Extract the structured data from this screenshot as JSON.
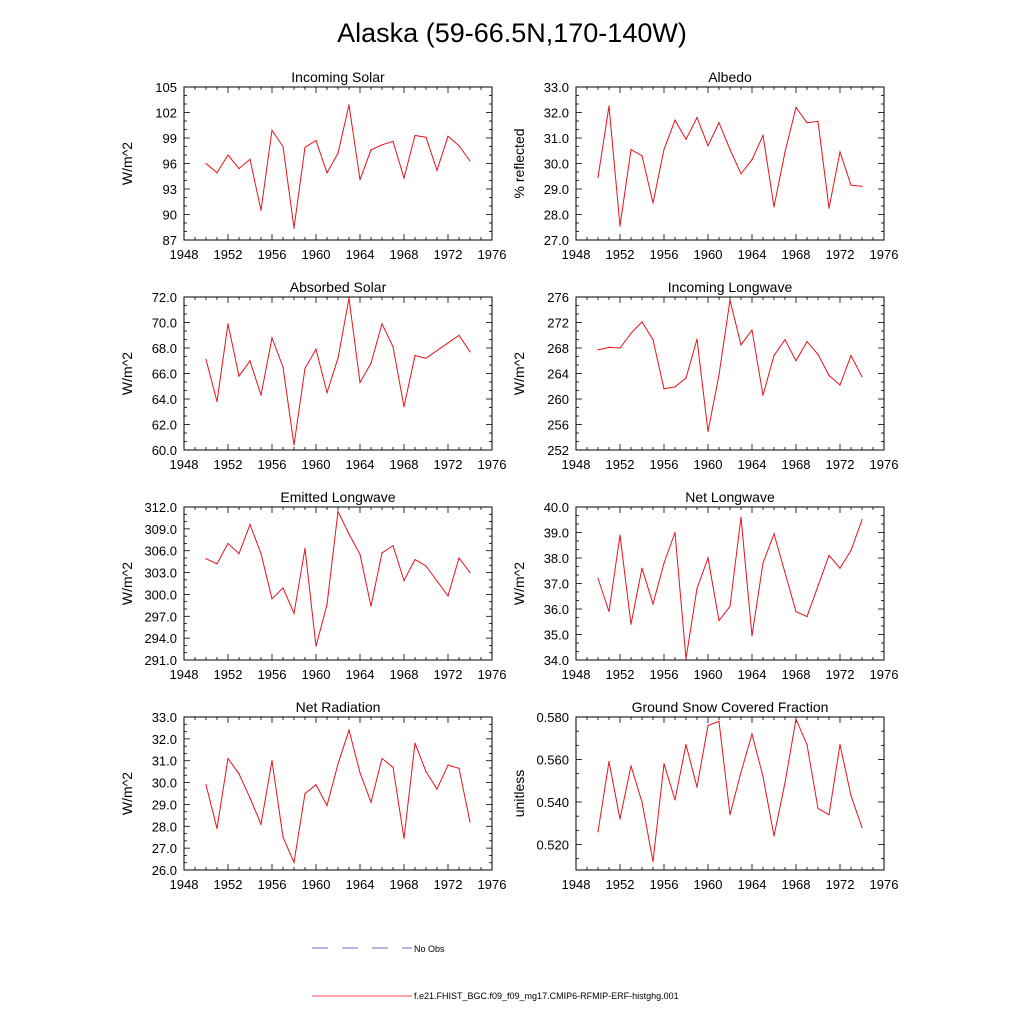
{
  "figure": {
    "title": "Alaska (59-66.5N,170-140W)",
    "legend": [
      {
        "label": "No Obs",
        "color": "#3b3bb5",
        "style": "dashed"
      },
      {
        "label": "f.e21.FHIST_BGC.f09_f09_mg17.CMIP6-RFMIP-ERF-histghg.001",
        "color": "#e8121a",
        "style": "solid"
      }
    ]
  },
  "chart_data": [
    {
      "type": "line",
      "title": "Incoming Solar",
      "xlabel": "",
      "ylabel": "W/m^2",
      "xlim": [
        1948,
        1976
      ],
      "ylim": [
        87,
        105
      ],
      "xticks": [
        1948,
        1952,
        1956,
        1960,
        1964,
        1968,
        1972,
        1976
      ],
      "yticks": [
        87,
        90,
        93,
        96,
        99,
        102,
        105
      ],
      "ytick_decimals": 0,
      "series": [
        {
          "color": "#e8121a",
          "x": [
            1950,
            1951,
            1952,
            1953,
            1954,
            1955,
            1956,
            1957,
            1958,
            1959,
            1960,
            1961,
            1962,
            1963,
            1964,
            1965,
            1966,
            1967,
            1968,
            1969,
            1970,
            1971,
            1972,
            1973,
            1974
          ],
          "y": [
            96.0,
            94.9,
            97.0,
            95.4,
            96.5,
            90.5,
            99.9,
            98.0,
            88.4,
            97.9,
            98.7,
            94.9,
            97.2,
            102.9,
            94.1,
            97.6,
            98.2,
            98.6,
            94.3,
            99.3,
            99.1,
            95.2,
            99.2,
            98.1,
            96.3
          ]
        }
      ]
    },
    {
      "type": "line",
      "title": "Albedo",
      "xlabel": "",
      "ylabel": "% reflected",
      "xlim": [
        1948,
        1976
      ],
      "ylim": [
        27.0,
        33.0
      ],
      "xticks": [
        1948,
        1952,
        1956,
        1960,
        1964,
        1968,
        1972,
        1976
      ],
      "yticks": [
        27,
        28,
        29,
        30,
        31,
        32,
        33
      ],
      "ytick_decimals": 1,
      "series": [
        {
          "color": "#e8121a",
          "x": [
            1950,
            1951,
            1952,
            1953,
            1954,
            1955,
            1956,
            1957,
            1958,
            1959,
            1960,
            1961,
            1962,
            1963,
            1964,
            1965,
            1966,
            1967,
            1968,
            1969,
            1970,
            1971,
            1972,
            1973,
            1974
          ],
          "y": [
            29.45,
            32.25,
            27.55,
            30.55,
            30.3,
            28.45,
            30.55,
            31.7,
            30.95,
            31.8,
            30.7,
            31.6,
            30.55,
            29.6,
            30.15,
            31.1,
            28.3,
            30.45,
            32.2,
            31.6,
            31.65,
            28.25,
            30.45,
            29.15,
            29.1
          ]
        }
      ]
    },
    {
      "type": "line",
      "title": "Absorbed Solar",
      "xlabel": "",
      "ylabel": "W/m^2",
      "xlim": [
        1948,
        1976
      ],
      "ylim": [
        60.0,
        72.0
      ],
      "xticks": [
        1948,
        1952,
        1956,
        1960,
        1964,
        1968,
        1972,
        1976
      ],
      "yticks": [
        60,
        62,
        64,
        66,
        68,
        70,
        72
      ],
      "ytick_decimals": 1,
      "series": [
        {
          "color": "#e8121a",
          "x": [
            1950,
            1951,
            1952,
            1953,
            1954,
            1955,
            1956,
            1957,
            1958,
            1959,
            1960,
            1961,
            1962,
            1963,
            1964,
            1965,
            1966,
            1967,
            1968,
            1969,
            1970,
            1973,
            1974
          ],
          "y": [
            67.1,
            63.8,
            69.9,
            65.8,
            67.0,
            64.3,
            68.8,
            66.5,
            60.4,
            66.4,
            67.9,
            64.5,
            67.2,
            71.9,
            65.3,
            66.8,
            69.9,
            68.1,
            63.4,
            67.4,
            67.2,
            69.0,
            67.7
          ]
        }
      ]
    },
    {
      "type": "line",
      "title": "Incoming Longwave",
      "xlabel": "",
      "ylabel": "W/m^2",
      "xlim": [
        1948,
        1976
      ],
      "ylim": [
        252,
        276
      ],
      "xticks": [
        1948,
        1952,
        1956,
        1960,
        1964,
        1968,
        1972,
        1976
      ],
      "yticks": [
        252,
        256,
        260,
        264,
        268,
        272,
        276
      ],
      "ytick_decimals": 0,
      "series": [
        {
          "color": "#e8121a",
          "x": [
            1950,
            1951,
            1952,
            1953,
            1954,
            1955,
            1956,
            1957,
            1958,
            1959,
            1960,
            1961,
            1962,
            1963,
            1964,
            1965,
            1966,
            1967,
            1968,
            1969,
            1970,
            1971,
            1972,
            1973,
            1974
          ],
          "y": [
            267.7,
            268.1,
            268.0,
            270.3,
            272.1,
            269.3,
            261.6,
            261.9,
            263.3,
            269.4,
            254.9,
            263.8,
            275.5,
            268.5,
            270.8,
            260.6,
            266.8,
            269.3,
            266.0,
            269.0,
            267.0,
            263.7,
            262.2,
            266.8,
            263.5
          ]
        }
      ]
    },
    {
      "type": "line",
      "title": "Emitted Longwave",
      "xlabel": "",
      "ylabel": "W/m^2",
      "xlim": [
        1948,
        1976
      ],
      "ylim": [
        291.0,
        312.0
      ],
      "xticks": [
        1948,
        1952,
        1956,
        1960,
        1964,
        1968,
        1972,
        1976
      ],
      "yticks": [
        291,
        294,
        297,
        300,
        303,
        306,
        309,
        312
      ],
      "ytick_decimals": 1,
      "series": [
        {
          "color": "#e8121a",
          "x": [
            1950,
            1951,
            1952,
            1953,
            1954,
            1955,
            1956,
            1957,
            1958,
            1959,
            1960,
            1961,
            1962,
            1963,
            1964,
            1965,
            1966,
            1967,
            1968,
            1969,
            1970,
            1972,
            1973,
            1974
          ],
          "y": [
            304.9,
            304.2,
            307.0,
            305.6,
            309.6,
            305.6,
            299.4,
            300.9,
            297.4,
            306.3,
            292.9,
            298.6,
            311.4,
            308.3,
            305.5,
            298.4,
            305.7,
            306.7,
            301.9,
            304.8,
            303.9,
            299.8,
            305.0,
            303.0
          ]
        }
      ]
    },
    {
      "type": "line",
      "title": "Net Longwave",
      "xlabel": "",
      "ylabel": "W/m^2",
      "xlim": [
        1948,
        1976
      ],
      "ylim": [
        34.0,
        40.0
      ],
      "xticks": [
        1948,
        1952,
        1956,
        1960,
        1964,
        1968,
        1972,
        1976
      ],
      "yticks": [
        34,
        35,
        36,
        37,
        38,
        39,
        40
      ],
      "ytick_decimals": 1,
      "series": [
        {
          "color": "#e8121a",
          "x": [
            1950,
            1951,
            1952,
            1953,
            1954,
            1955,
            1956,
            1957,
            1958,
            1959,
            1960,
            1961,
            1962,
            1963,
            1964,
            1965,
            1966,
            1968,
            1969,
            1971,
            1972,
            1973,
            1974
          ],
          "y": [
            37.2,
            35.9,
            38.9,
            35.4,
            37.6,
            36.2,
            37.8,
            39.0,
            34.05,
            36.8,
            38.0,
            35.55,
            36.1,
            39.6,
            34.95,
            37.8,
            38.95,
            35.9,
            35.7,
            38.1,
            37.6,
            38.3,
            39.5
          ]
        }
      ]
    },
    {
      "type": "line",
      "title": "Net Radiation",
      "xlabel": "",
      "ylabel": "W/m^2",
      "xlim": [
        1948,
        1976
      ],
      "ylim": [
        26.0,
        33.0
      ],
      "xticks": [
        1948,
        1952,
        1956,
        1960,
        1964,
        1968,
        1972,
        1976
      ],
      "yticks": [
        26,
        27,
        28,
        29,
        30,
        31,
        32,
        33
      ],
      "ytick_decimals": 1,
      "series": [
        {
          "color": "#e8121a",
          "x": [
            1950,
            1951,
            1952,
            1953,
            1954,
            1955,
            1956,
            1957,
            1958,
            1959,
            1960,
            1961,
            1962,
            1963,
            1964,
            1965,
            1966,
            1967,
            1968,
            1969,
            1970,
            1971,
            1972,
            1973,
            1974
          ],
          "y": [
            29.9,
            27.9,
            31.1,
            30.4,
            29.3,
            28.1,
            31.0,
            27.5,
            26.35,
            29.5,
            29.9,
            28.95,
            30.85,
            32.4,
            30.45,
            29.1,
            31.1,
            30.7,
            27.45,
            31.8,
            30.5,
            29.7,
            30.8,
            30.65,
            28.2
          ]
        }
      ]
    },
    {
      "type": "line",
      "title": "Ground Snow Covered Fraction",
      "xlabel": "",
      "ylabel": "unitless",
      "xlim": [
        1948,
        1976
      ],
      "ylim": [
        0.508,
        0.58
      ],
      "xticks": [
        1948,
        1952,
        1956,
        1960,
        1964,
        1968,
        1972,
        1976
      ],
      "yticks": [
        0.52,
        0.54,
        0.56,
        0.58
      ],
      "ytick_decimals": 3,
      "series": [
        {
          "color": "#e8121a",
          "x": [
            1950,
            1951,
            1952,
            1953,
            1954,
            1955,
            1956,
            1957,
            1958,
            1959,
            1960,
            1961,
            1962,
            1963,
            1964,
            1965,
            1966,
            1967,
            1968,
            1969,
            1970,
            1971,
            1972,
            1973,
            1974
          ],
          "y": [
            0.526,
            0.559,
            0.532,
            0.557,
            0.54,
            0.512,
            0.558,
            0.541,
            0.567,
            0.547,
            0.576,
            0.578,
            0.534,
            0.554,
            0.572,
            0.552,
            0.524,
            0.549,
            0.579,
            0.567,
            0.537,
            0.534,
            0.567,
            0.543,
            0.528
          ]
        }
      ]
    }
  ]
}
